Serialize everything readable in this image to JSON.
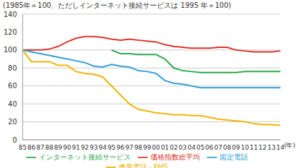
{
  "chart_data": {
    "type": "line",
    "subtitle": "(1985年＝100、ただしインターネット接続サービスは 1995 年＝100)",
    "x_label": "(年)",
    "categories": [
      "85",
      "86",
      "87",
      "88",
      "89",
      "90",
      "91",
      "92",
      "93",
      "94",
      "95",
      "96",
      "97",
      "98",
      "99",
      "00",
      "01",
      "02",
      "03",
      "04",
      "05",
      "06",
      "07",
      "08",
      "09",
      "10",
      "11",
      "12",
      "13",
      "14"
    ],
    "series": [
      {
        "name": "価格指数総平均",
        "color": "#d9342b",
        "values": [
          100,
          100,
          100,
          101,
          104,
          109,
          113,
          115,
          115,
          114,
          112,
          111,
          112,
          111,
          110,
          109,
          106,
          104,
          103,
          102,
          102,
          102,
          103,
          103,
          100,
          99,
          98,
          98,
          98,
          99
        ]
      },
      {
        "name": "固定電話",
        "color": "#2e9fd8",
        "values": [
          100,
          98,
          96,
          94,
          92,
          90,
          88,
          86,
          82,
          81,
          84,
          82,
          81,
          77,
          76,
          74,
          66,
          63,
          62,
          60,
          58,
          58,
          58,
          58,
          58,
          58,
          58,
          58,
          58,
          58
        ]
      },
      {
        "name": "インターネット接続サービス",
        "color": "#2aa84a",
        "values": [
          null,
          null,
          null,
          null,
          null,
          null,
          null,
          null,
          null,
          null,
          100,
          96,
          96,
          95,
          95,
          95,
          90,
          80,
          77,
          76,
          75,
          75,
          75,
          75,
          75,
          76,
          76,
          76,
          76,
          76
        ]
      },
      {
        "name": "携帯電話・PHS",
        "color": "#f0b400",
        "values": [
          100,
          87,
          87,
          87,
          83,
          83,
          76,
          74,
          73,
          70,
          60,
          50,
          40,
          34,
          32,
          30,
          29,
          28,
          28,
          27,
          27,
          25,
          23,
          22,
          21,
          20,
          18,
          17,
          17,
          16
        ]
      }
    ],
    "ylim": [
      0,
      140
    ],
    "yticks": [
      0,
      20,
      40,
      60,
      80,
      100,
      120,
      140
    ],
    "grid": true,
    "legend": "bottom"
  }
}
